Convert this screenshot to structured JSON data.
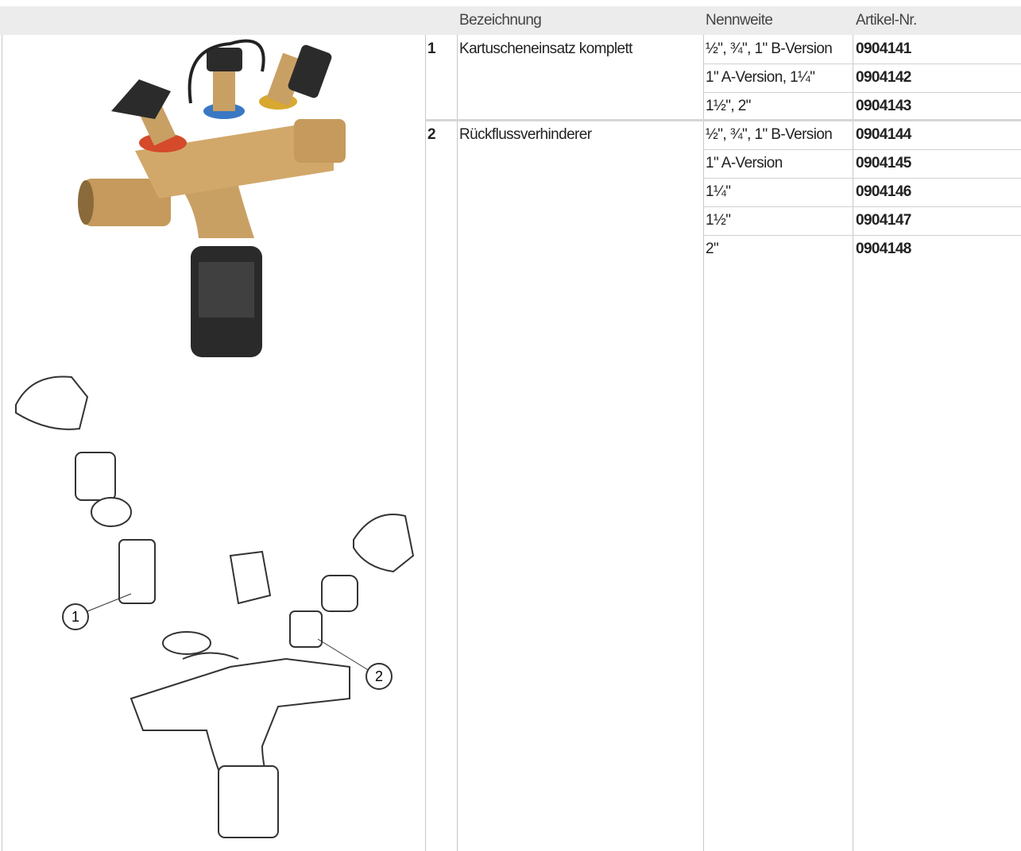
{
  "table": {
    "header": [
      "Bezeichnung",
      "Nennweite",
      "Artikel-Nr."
    ],
    "groups": [
      {
        "number": "1",
        "name": "Kartuscheneinsatz komplett",
        "rows": [
          {
            "size": "½\", ¾\", 1\" B-Version",
            "article": "0904141"
          },
          {
            "size": "1\" A-Version, 1¼\"",
            "article": "0904142"
          },
          {
            "size": "1½\", 2\"",
            "article": "0904143"
          }
        ]
      },
      {
        "number": "2",
        "name": "Rückflussverhinderer",
        "rows": [
          {
            "size": "½\", ¾\", 1\" B-Version",
            "article": "0904144"
          },
          {
            "size": "1\" A-Version",
            "article": "0904145"
          },
          {
            "size": "1¼\"",
            "article": "0904146"
          },
          {
            "size": "1½\"",
            "article": "0904147"
          },
          {
            "size": "2\"",
            "article": "0904148"
          }
        ]
      }
    ]
  },
  "figure": {
    "callouts": [
      "1",
      "2"
    ]
  }
}
